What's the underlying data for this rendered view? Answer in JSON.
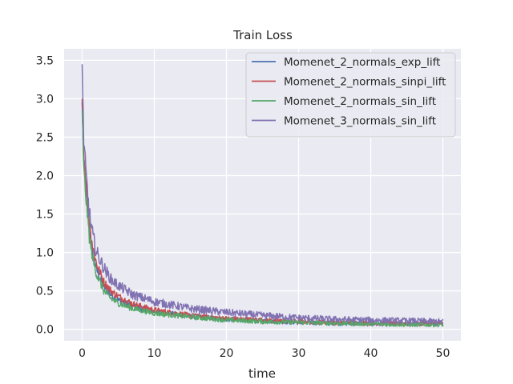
{
  "chart_data": {
    "type": "line",
    "title": "Train Loss",
    "xlabel": "time",
    "ylabel": "",
    "xlim": [
      -2.5,
      52.5
    ],
    "ylim": [
      -0.15,
      3.65
    ],
    "xticks": [
      0,
      10,
      20,
      30,
      40,
      50
    ],
    "yticks": [
      0.0,
      0.5,
      1.0,
      1.5,
      2.0,
      2.5,
      3.0,
      3.5
    ],
    "xtick_labels": [
      "0",
      "10",
      "20",
      "30",
      "40",
      "50"
    ],
    "ytick_labels": [
      "0.0",
      "0.5",
      "1.0",
      "1.5",
      "2.0",
      "2.5",
      "3.0",
      "3.5"
    ],
    "grid": true,
    "legend_position": "top-right",
    "background": "#eaeaf2",
    "series": [
      {
        "name": "Momenet_2_normals_exp_lift",
        "color": "#4c72b0",
        "x": [
          0,
          0.2,
          0.5,
          1,
          1.5,
          2,
          3,
          4,
          5,
          7,
          10,
          15,
          20,
          25,
          30,
          35,
          40,
          45,
          50
        ],
        "y": [
          2.95,
          2.2,
          1.85,
          1.3,
          0.95,
          0.78,
          0.55,
          0.45,
          0.38,
          0.3,
          0.23,
          0.17,
          0.13,
          0.11,
          0.09,
          0.08,
          0.07,
          0.07,
          0.07
        ],
        "noise": 0.05
      },
      {
        "name": "Momenet_2_normals_sinpi_lift",
        "color": "#c44e52",
        "x": [
          0,
          0.2,
          0.5,
          1,
          1.5,
          2,
          3,
          4,
          5,
          7,
          10,
          15,
          20,
          25,
          30,
          35,
          40,
          45,
          50
        ],
        "y": [
          3.0,
          2.3,
          1.95,
          1.4,
          1.05,
          0.85,
          0.62,
          0.5,
          0.43,
          0.33,
          0.25,
          0.18,
          0.14,
          0.12,
          0.1,
          0.09,
          0.08,
          0.07,
          0.07
        ],
        "noise": 0.05
      },
      {
        "name": "Momenet_2_normals_sin_lift",
        "color": "#55a868",
        "x": [
          0,
          0.2,
          0.5,
          1,
          1.5,
          2,
          3,
          4,
          5,
          7,
          10,
          15,
          20,
          25,
          30,
          35,
          40,
          45,
          50
        ],
        "y": [
          2.85,
          2.1,
          1.75,
          1.2,
          0.9,
          0.72,
          0.5,
          0.4,
          0.34,
          0.27,
          0.21,
          0.16,
          0.12,
          0.1,
          0.09,
          0.08,
          0.07,
          0.06,
          0.06
        ],
        "noise": 0.05
      },
      {
        "name": "Momenet_3_normals_sin_lift",
        "color": "#8172b2",
        "x": [
          0,
          0.2,
          0.5,
          1,
          1.5,
          2,
          3,
          4,
          5,
          7,
          10,
          15,
          20,
          25,
          30,
          35,
          40,
          45,
          50
        ],
        "y": [
          3.45,
          2.5,
          2.05,
          1.5,
          1.2,
          1.0,
          0.8,
          0.65,
          0.57,
          0.45,
          0.36,
          0.27,
          0.22,
          0.18,
          0.15,
          0.13,
          0.12,
          0.11,
          0.1
        ],
        "noise": 0.065
      }
    ]
  }
}
